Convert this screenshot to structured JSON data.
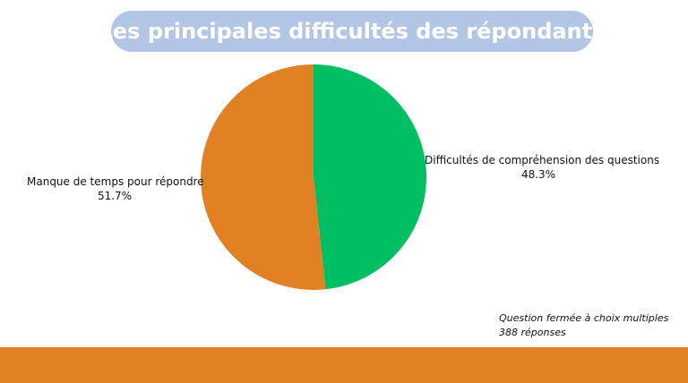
{
  "title": "Les principales difficultés des répondants",
  "colors": {
    "title_bg": "#b3c6e6",
    "footer_band": "#e08224"
  },
  "chart_data": {
    "type": "pie",
    "slices": [
      {
        "label": "Difficultés de compréhension des questions",
        "value": 48.3,
        "display": "48.3%",
        "color": "#00bf63"
      },
      {
        "label": "Manque de temps pour répondre",
        "value": 51.7,
        "display": "51.7%",
        "color": "#e08224"
      }
    ]
  },
  "note": {
    "line1": "Question fermée à choix multiples",
    "line2": "388 réponses"
  }
}
